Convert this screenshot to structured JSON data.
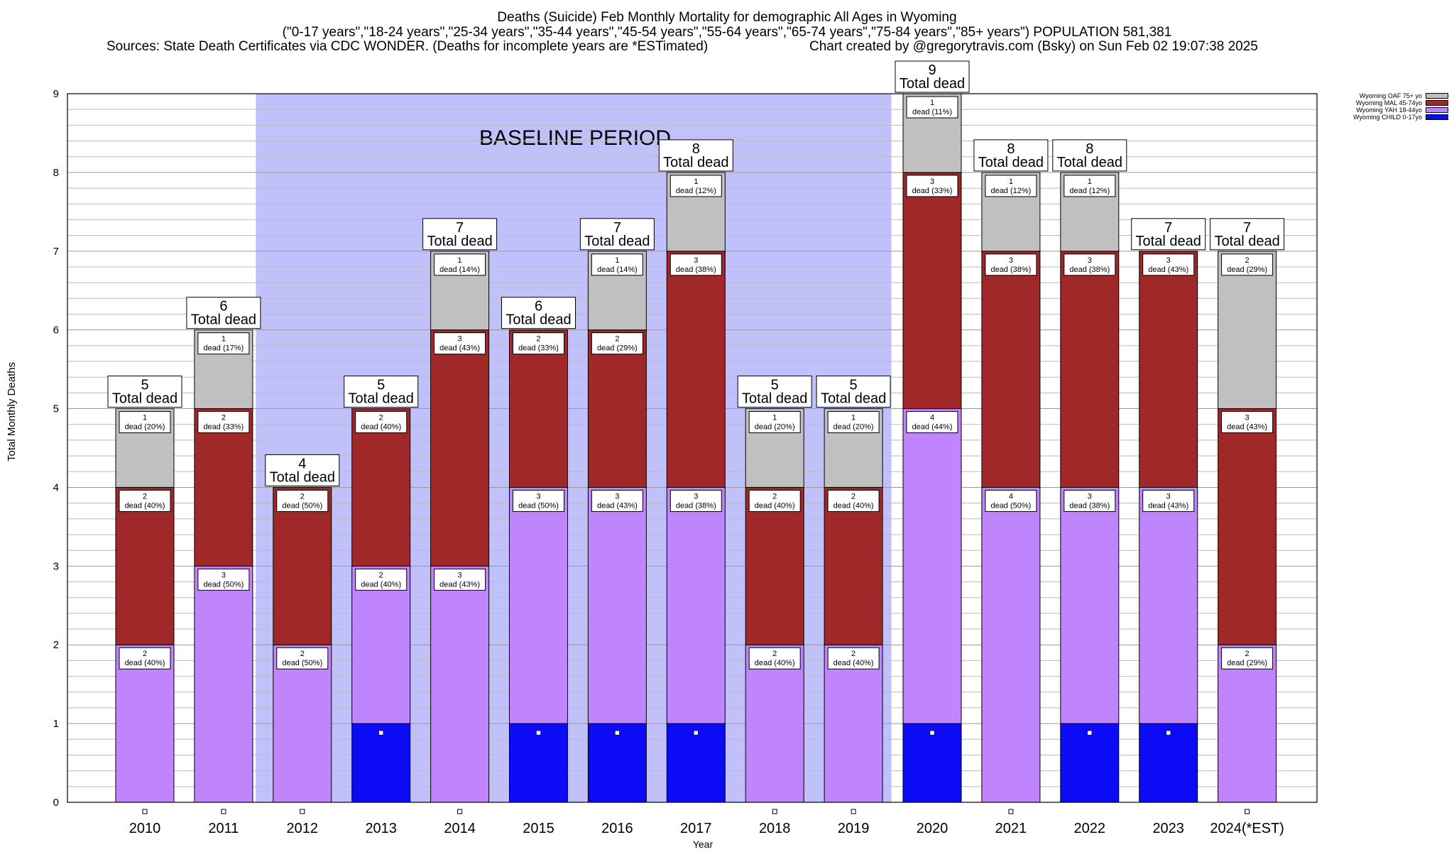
{
  "title": {
    "line1": "Deaths (Suicide) Feb Monthly Mortality for demographic All Ages in Wyoming",
    "line2": "(\"0-17 years\",\"18-24 years\",\"25-34 years\",\"35-44 years\",\"45-54 years\",\"55-64 years\",\"65-74 years\",\"75-84 years\",\"85+ years\") POPULATION 581,381",
    "sources": "Sources: State Death Certificates via CDC WONDER. (Deaths for incomplete years are *ESTimated)",
    "credit": "Chart created by @gregorytravis.com (Bsky) on Sun Feb 02 19:07:38 2025"
  },
  "colors": {
    "child": "#0b0bf5",
    "yah": "#c084fc",
    "mal": "#a02828",
    "oaf": "#c0c0c0",
    "baseline": "#c0c0fa"
  },
  "chart_data": {
    "type": "bar",
    "stacked": true,
    "xlabel": "Year",
    "ylabel": "Total Monthly Deaths",
    "ylim": [
      0,
      9
    ],
    "yticks": [
      0,
      1,
      2,
      3,
      4,
      5,
      6,
      7,
      8,
      9
    ],
    "categories": [
      "2010",
      "2011",
      "2012",
      "2013",
      "2014",
      "2015",
      "2016",
      "2017",
      "2018",
      "2019",
      "2020",
      "2021",
      "2022",
      "2023",
      "2024(*EST)"
    ],
    "baseline": {
      "label": "BASELINE PERIOD",
      "from": "2012",
      "to": "2019"
    },
    "total_label": "Total dead",
    "dead_word": "dead",
    "legend_position": "top-right",
    "series": [
      {
        "key": "child",
        "name": "Wyoming CHILD 0-17yo",
        "values": [
          0,
          0,
          0,
          1,
          0,
          1,
          1,
          1,
          0,
          0,
          1,
          0,
          1,
          1,
          0
        ]
      },
      {
        "key": "yah",
        "name": "Wyoming YAH 18-44yo",
        "values": [
          2,
          3,
          2,
          2,
          3,
          3,
          3,
          3,
          2,
          2,
          4,
          4,
          3,
          3,
          2
        ]
      },
      {
        "key": "mal",
        "name": "Wyoming MAL 45-74yo",
        "values": [
          2,
          2,
          2,
          2,
          3,
          2,
          2,
          3,
          2,
          2,
          3,
          3,
          3,
          3,
          3
        ]
      },
      {
        "key": "oaf",
        "name": "Wyoming OAF 75+ yo",
        "values": [
          1,
          1,
          0,
          0,
          1,
          0,
          1,
          1,
          1,
          1,
          1,
          1,
          1,
          0,
          2
        ]
      }
    ],
    "segment_labels": {
      "yah": [
        "40%",
        "50%",
        "50%",
        "40%",
        "43%",
        "50%",
        "43%",
        "38%",
        "40%",
        "40%",
        "44%",
        "50%",
        "38%",
        "43%",
        "29%"
      ],
      "mal": [
        "40%",
        "33%",
        "50%",
        "40%",
        "43%",
        "33%",
        "29%",
        "38%",
        "40%",
        "40%",
        "33%",
        "38%",
        "38%",
        "43%",
        "43%"
      ],
      "oaf": [
        "20%",
        "17%",
        "",
        "",
        "14%",
        "",
        "14%",
        "12%",
        "20%",
        "20%",
        "11%",
        "12%",
        "12%",
        "",
        "29%"
      ]
    },
    "totals": [
      5,
      6,
      4,
      5,
      7,
      6,
      7,
      8,
      5,
      5,
      9,
      8,
      8,
      7,
      7
    ]
  }
}
